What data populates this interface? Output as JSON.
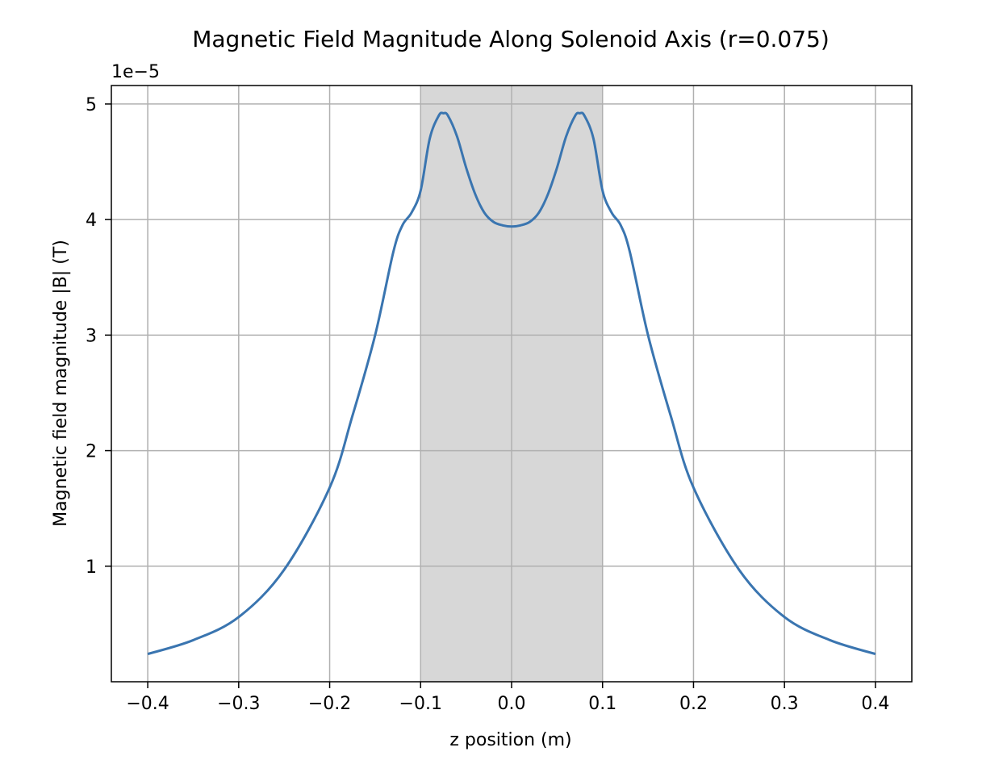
{
  "chart_data": {
    "type": "line",
    "title": "Magnetic Field Magnitude Along Solenoid Axis (r=0.075)",
    "xlabel": "z position (m)",
    "ylabel": "Magnetic field magnitude |B| (T)",
    "y_offset_label": "1e−5",
    "xlim": [
      -0.44,
      0.44
    ],
    "ylim": [
      0.0,
      5.16
    ],
    "x_ticks": [
      -0.4,
      -0.3,
      -0.2,
      -0.1,
      0.0,
      0.1,
      0.2,
      0.3,
      0.4
    ],
    "x_tick_labels": [
      "−0.4",
      "−0.3",
      "−0.2",
      "−0.1",
      "0.0",
      "0.1",
      "0.2",
      "0.3",
      "0.4"
    ],
    "y_ticks": [
      1,
      2,
      3,
      4,
      5
    ],
    "y_tick_labels": [
      "1",
      "2",
      "3",
      "4",
      "5"
    ],
    "grid": true,
    "shaded_region": {
      "x_start": -0.1,
      "x_end": 0.1,
      "color": "#d7d7d7"
    },
    "series": [
      {
        "color": "#3a75b0",
        "x": [
          -0.4,
          -0.35,
          -0.3,
          -0.25,
          -0.2,
          -0.175,
          -0.15,
          -0.13,
          -0.12,
          -0.11,
          -0.1,
          -0.09,
          -0.08,
          -0.075,
          -0.07,
          -0.06,
          -0.05,
          -0.04,
          -0.03,
          -0.02,
          -0.01,
          0.0,
          0.01,
          0.02,
          0.03,
          0.04,
          0.05,
          0.06,
          0.07,
          0.075,
          0.08,
          0.09,
          0.1,
          0.11,
          0.12,
          0.13,
          0.15,
          0.175,
          0.2,
          0.25,
          0.3,
          0.35,
          0.4
        ],
        "y": [
          0.24,
          0.36,
          0.56,
          0.97,
          1.68,
          2.3,
          3.0,
          3.72,
          3.95,
          4.06,
          4.25,
          4.7,
          4.9,
          4.92,
          4.9,
          4.72,
          4.45,
          4.22,
          4.06,
          3.98,
          3.95,
          3.94,
          3.95,
          3.98,
          4.06,
          4.22,
          4.45,
          4.72,
          4.9,
          4.92,
          4.9,
          4.7,
          4.25,
          4.06,
          3.95,
          3.72,
          3.0,
          2.3,
          1.68,
          0.97,
          0.56,
          0.36,
          0.24
        ]
      }
    ]
  }
}
